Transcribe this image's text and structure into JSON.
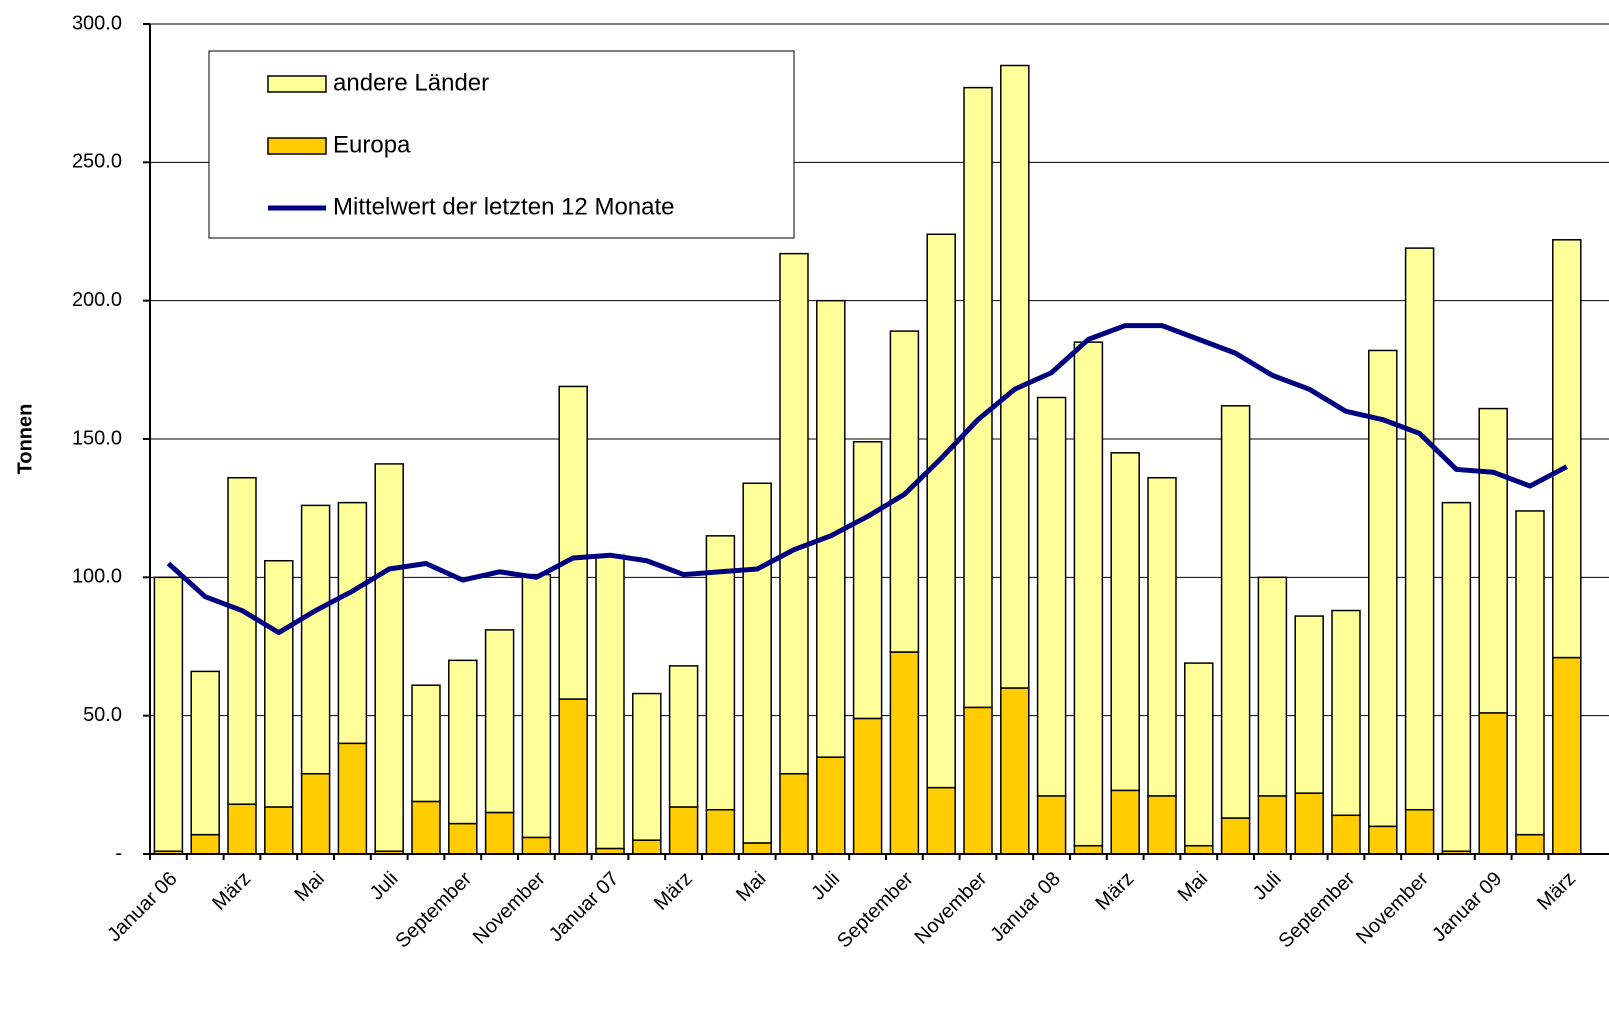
{
  "chart_data": {
    "type": "bar_line",
    "y_label": "Tonnen",
    "categories": [
      "Januar 06",
      null,
      "März",
      null,
      "Mai",
      null,
      "Juli",
      null,
      "September",
      null,
      "November",
      null,
      "Januar 07",
      null,
      "März",
      null,
      "Mai",
      null,
      "Juli",
      null,
      "September",
      null,
      "November",
      null,
      "Januar 08",
      null,
      "März",
      null,
      "Mai",
      null,
      "Juli",
      null,
      "September",
      null,
      "November",
      null,
      "Januar 09",
      null,
      "März"
    ],
    "series": [
      {
        "name": "andere Länder",
        "type": "bar",
        "color": "#FFFF99",
        "values": [
          99,
          59,
          118,
          89,
          97,
          87,
          140,
          42,
          59,
          66,
          95,
          113,
          106,
          53,
          51,
          99,
          130,
          188,
          165,
          100,
          116,
          200,
          224,
          225,
          144,
          182,
          122,
          115,
          66,
          149,
          79,
          64,
          74,
          172,
          203,
          126,
          110,
          117,
          151
        ]
      },
      {
        "name": "Europa",
        "type": "bar",
        "color": "#FFCC00",
        "values": [
          1,
          7,
          18,
          17,
          29,
          40,
          1,
          19,
          11,
          15,
          6,
          56,
          2,
          5,
          17,
          16,
          4,
          29,
          35,
          49,
          73,
          24,
          53,
          60,
          21,
          3,
          23,
          21,
          3,
          13,
          21,
          22,
          14,
          10,
          16,
          1,
          51,
          7,
          71
        ]
      },
      {
        "name": "Mittelwert der letzten 12 Monate",
        "type": "line",
        "color": "#000080",
        "values": [
          105,
          93,
          88,
          80,
          88,
          95,
          103,
          105,
          99,
          102,
          100,
          107,
          108,
          106,
          101,
          102,
          103,
          110,
          115,
          122,
          130,
          143,
          157,
          168,
          174,
          186,
          191,
          191,
          186,
          181,
          173,
          168,
          160,
          157,
          152,
          139,
          138,
          133,
          140
        ]
      }
    ],
    "ylim": [
      0,
      300
    ],
    "yticks": [
      {
        "value": 0,
        "label": "-"
      },
      {
        "value": 50,
        "label": "50.0"
      },
      {
        "value": 100,
        "label": "100.0"
      },
      {
        "value": 150,
        "label": "150.0"
      },
      {
        "value": 200,
        "label": "200.0"
      },
      {
        "value": 250,
        "label": "250.0"
      },
      {
        "value": 300,
        "label": "300.0"
      }
    ],
    "grid": true
  }
}
